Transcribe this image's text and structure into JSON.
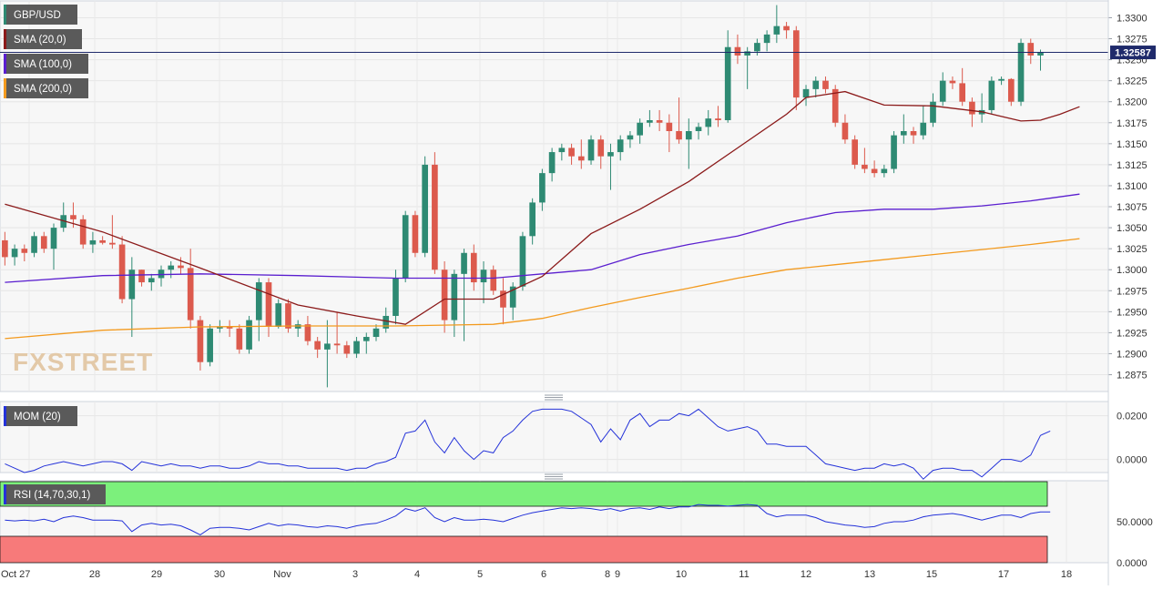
{
  "symbol": "GBP/USD",
  "indicators": {
    "sma20": "SMA (20,0)",
    "sma100": "SMA (100,0)",
    "sma200": "SMA (200,0)",
    "mom": "MOM (20)",
    "rsi": "RSI (14,70,30,1)"
  },
  "watermark": "FXSTREET",
  "last_price_label": "1.32587",
  "colors": {
    "up": "#2e8a73",
    "down": "#dc5a4d",
    "sma20": "#8b1a1a",
    "sma100": "#5a1ecf",
    "sma200": "#f39a1e",
    "mom": "#2432d9",
    "rsi": "#2432d9",
    "rsi_overbought": "#7cf07c",
    "rsi_oversold": "#f77a7a",
    "price_line": "#1f2a6b"
  },
  "chart_data": [
    {
      "type": "candlestick",
      "title": "GBP/USD",
      "x_tick_labels": [
        "Oct 27",
        "28",
        "29",
        "30",
        "Nov",
        "3",
        "4",
        "5",
        "6",
        "8",
        "9",
        "10",
        "11",
        "12",
        "13",
        "15",
        "17",
        "18"
      ],
      "ylim": [
        1.2855,
        1.332
      ],
      "y_ticks": [
        "1.3300",
        "1.3275",
        "1.3250",
        "1.3225",
        "1.3200",
        "1.3175",
        "1.3150",
        "1.3125",
        "1.3100",
        "1.3075",
        "1.3050",
        "1.3025",
        "1.3000",
        "1.2975",
        "1.2950",
        "1.2925",
        "1.2900",
        "1.2875"
      ],
      "last_price": 1.32587,
      "ohlc": [
        [
          1.3035,
          1.3045,
          1.3005,
          1.3015
        ],
        [
          1.3015,
          1.303,
          1.3005,
          1.3025
        ],
        [
          1.3025,
          1.303,
          1.301,
          1.302
        ],
        [
          1.302,
          1.3045,
          1.3015,
          1.304
        ],
        [
          1.304,
          1.3045,
          1.302,
          1.3025
        ],
        [
          1.3025,
          1.3055,
          1.3,
          1.305
        ],
        [
          1.305,
          1.308,
          1.3045,
          1.3065
        ],
        [
          1.3065,
          1.308,
          1.305,
          1.306
        ],
        [
          1.306,
          1.3065,
          1.3025,
          1.303
        ],
        [
          1.303,
          1.3045,
          1.302,
          1.3035
        ],
        [
          1.3035,
          1.304,
          1.303,
          1.3032
        ],
        [
          1.3032,
          1.3065,
          1.3025,
          1.303
        ],
        [
          1.303,
          1.304,
          1.296,
          1.2965
        ],
        [
          1.2965,
          1.3015,
          1.292,
          1.3
        ],
        [
          1.3,
          1.3,
          1.298,
          1.2985
        ],
        [
          1.2985,
          1.2995,
          1.2975,
          1.299
        ],
        [
          1.299,
          1.3005,
          1.298,
          1.3
        ],
        [
          1.3,
          1.301,
          1.299,
          1.3005
        ],
        [
          1.3005,
          1.3015,
          1.2995,
          1.3002
        ],
        [
          1.3002,
          1.3025,
          1.293,
          1.294
        ],
        [
          1.294,
          1.2945,
          1.288,
          1.289
        ],
        [
          1.289,
          1.2935,
          1.2885,
          1.293
        ],
        [
          1.293,
          1.294,
          1.2925,
          1.2932
        ],
        [
          1.2932,
          1.294,
          1.292,
          1.293
        ],
        [
          1.293,
          1.2935,
          1.29,
          1.2905
        ],
        [
          1.2905,
          1.2945,
          1.29,
          1.294
        ],
        [
          1.294,
          1.299,
          1.2915,
          1.2985
        ],
        [
          1.2985,
          1.299,
          1.292,
          1.2932
        ],
        [
          1.2932,
          1.2965,
          1.293,
          1.296
        ],
        [
          1.296,
          1.2965,
          1.2925,
          1.293
        ],
        [
          1.293,
          1.294,
          1.292,
          1.2935
        ],
        [
          1.2935,
          1.2945,
          1.291,
          1.2915
        ],
        [
          1.2915,
          1.292,
          1.2895,
          1.2905
        ],
        [
          1.2905,
          1.294,
          1.286,
          1.2912
        ],
        [
          1.2912,
          1.295,
          1.29,
          1.291
        ],
        [
          1.291,
          1.2915,
          1.2895,
          1.29
        ],
        [
          1.29,
          1.292,
          1.2895,
          1.2915
        ],
        [
          1.2915,
          1.2925,
          1.29,
          1.292
        ],
        [
          1.292,
          1.2935,
          1.2915,
          1.293
        ],
        [
          1.293,
          1.2955,
          1.2925,
          1.2945
        ],
        [
          1.2945,
          1.3,
          1.2935,
          1.299
        ],
        [
          1.299,
          1.307,
          1.2985,
          1.3065
        ],
        [
          1.3065,
          1.307,
          1.3015,
          1.302
        ],
        [
          1.302,
          1.3135,
          1.3015,
          1.3125
        ],
        [
          1.3125,
          1.314,
          1.2995,
          1.3
        ],
        [
          1.3,
          1.301,
          1.2925,
          1.294
        ],
        [
          1.294,
          1.3,
          1.292,
          1.2995
        ],
        [
          1.2995,
          1.3025,
          1.2915,
          1.302
        ],
        [
          1.302,
          1.303,
          1.2975,
          1.2985
        ],
        [
          1.2985,
          1.301,
          1.296,
          1.3
        ],
        [
          1.3,
          1.3005,
          1.297,
          1.2975
        ],
        [
          1.2975,
          1.299,
          1.2935,
          1.2955
        ],
        [
          1.2955,
          1.2985,
          1.294,
          1.298
        ],
        [
          1.298,
          1.3045,
          1.2975,
          1.304
        ],
        [
          1.304,
          1.3085,
          1.303,
          1.308
        ],
        [
          1.308,
          1.312,
          1.307,
          1.3115
        ],
        [
          1.3115,
          1.3145,
          1.3105,
          1.314
        ],
        [
          1.314,
          1.315,
          1.313,
          1.3145
        ],
        [
          1.3145,
          1.315,
          1.3125,
          1.3135
        ],
        [
          1.3135,
          1.3155,
          1.312,
          1.313
        ],
        [
          1.313,
          1.316,
          1.3125,
          1.3155
        ],
        [
          1.3155,
          1.316,
          1.312,
          1.3135
        ],
        [
          1.3135,
          1.315,
          1.3095,
          1.314
        ],
        [
          1.314,
          1.316,
          1.313,
          1.3155
        ],
        [
          1.3155,
          1.3165,
          1.3145,
          1.316
        ],
        [
          1.316,
          1.318,
          1.315,
          1.3175
        ],
        [
          1.3175,
          1.319,
          1.317,
          1.3178
        ],
        [
          1.3178,
          1.319,
          1.3165,
          1.3175
        ],
        [
          1.3175,
          1.3185,
          1.314,
          1.3165
        ],
        [
          1.3165,
          1.3205,
          1.315,
          1.3155
        ],
        [
          1.3155,
          1.318,
          1.312,
          1.3165
        ],
        [
          1.3165,
          1.3175,
          1.3155,
          1.317
        ],
        [
          1.317,
          1.319,
          1.316,
          1.318
        ],
        [
          1.318,
          1.3195,
          1.317,
          1.3178
        ],
        [
          1.3178,
          1.3285,
          1.3175,
          1.3265
        ],
        [
          1.3265,
          1.328,
          1.3245,
          1.3255
        ],
        [
          1.3255,
          1.3265,
          1.3215,
          1.326
        ],
        [
          1.326,
          1.3275,
          1.3255,
          1.327
        ],
        [
          1.327,
          1.3285,
          1.326,
          1.328
        ],
        [
          1.328,
          1.3315,
          1.327,
          1.329
        ],
        [
          1.329,
          1.3295,
          1.3275,
          1.3285
        ],
        [
          1.3285,
          1.329,
          1.319,
          1.3205
        ],
        [
          1.3205,
          1.322,
          1.3195,
          1.3215
        ],
        [
          1.3215,
          1.323,
          1.3205,
          1.3225
        ],
        [
          1.3225,
          1.323,
          1.321,
          1.3215
        ],
        [
          1.3215,
          1.322,
          1.317,
          1.3175
        ],
        [
          1.3175,
          1.3185,
          1.315,
          1.3155
        ],
        [
          1.3155,
          1.316,
          1.312,
          1.3125
        ],
        [
          1.3125,
          1.3145,
          1.3115,
          1.312
        ],
        [
          1.312,
          1.313,
          1.311,
          1.3115
        ],
        [
          1.3115,
          1.3125,
          1.311,
          1.312
        ],
        [
          1.312,
          1.3165,
          1.3115,
          1.316
        ],
        [
          1.316,
          1.3185,
          1.315,
          1.3165
        ],
        [
          1.3165,
          1.317,
          1.315,
          1.316
        ],
        [
          1.316,
          1.3195,
          1.3155,
          1.3175
        ],
        [
          1.3175,
          1.321,
          1.317,
          1.32
        ],
        [
          1.32,
          1.3235,
          1.3195,
          1.3225
        ],
        [
          1.3225,
          1.323,
          1.3215,
          1.3222
        ],
        [
          1.3222,
          1.324,
          1.3195,
          1.32
        ],
        [
          1.32,
          1.3205,
          1.317,
          1.3185
        ],
        [
          1.3185,
          1.321,
          1.3175,
          1.319
        ],
        [
          1.319,
          1.323,
          1.3185,
          1.3225
        ],
        [
          1.3225,
          1.323,
          1.322,
          1.3227
        ],
        [
          1.3227,
          1.3228,
          1.3195,
          1.32
        ],
        [
          1.32,
          1.3275,
          1.3195,
          1.327
        ],
        [
          1.327,
          1.3275,
          1.3245,
          1.3255
        ],
        [
          1.3255,
          1.3262,
          1.3237,
          1.3259
        ]
      ],
      "sma20": [
        [
          0,
          1.3078
        ],
        [
          10,
          1.3045
        ],
        [
          20,
          1.3002
        ],
        [
          30,
          1.2958
        ],
        [
          36,
          1.2945
        ],
        [
          41,
          1.2935
        ],
        [
          45,
          1.2965
        ],
        [
          50,
          1.2965
        ],
        [
          55,
          1.2992
        ],
        [
          60,
          1.3043
        ],
        [
          65,
          1.3072
        ],
        [
          70,
          1.3105
        ],
        [
          75,
          1.3145
        ],
        [
          80,
          1.3185
        ],
        [
          82,
          1.3205
        ],
        [
          86,
          1.3212
        ],
        [
          90,
          1.3196
        ],
        [
          95,
          1.3195
        ],
        [
          100,
          1.3188
        ],
        [
          104,
          1.3177
        ],
        [
          106,
          1.3178
        ],
        [
          108,
          1.3185
        ],
        [
          110,
          1.3194
        ]
      ],
      "sma100": [
        [
          0,
          1.2985
        ],
        [
          10,
          1.2993
        ],
        [
          20,
          1.2995
        ],
        [
          30,
          1.2993
        ],
        [
          40,
          1.299
        ],
        [
          50,
          1.299
        ],
        [
          55,
          1.2995
        ],
        [
          60,
          1.3
        ],
        [
          65,
          1.3018
        ],
        [
          70,
          1.303
        ],
        [
          75,
          1.304
        ],
        [
          80,
          1.3056
        ],
        [
          85,
          1.3068
        ],
        [
          90,
          1.3072
        ],
        [
          95,
          1.3072
        ],
        [
          100,
          1.3076
        ],
        [
          105,
          1.3082
        ],
        [
          110,
          1.309
        ]
      ],
      "sma200": [
        [
          0,
          1.2918
        ],
        [
          10,
          1.2928
        ],
        [
          20,
          1.2932
        ],
        [
          30,
          1.2933
        ],
        [
          40,
          1.2933
        ],
        [
          50,
          1.2935
        ],
        [
          55,
          1.2942
        ],
        [
          60,
          1.2955
        ],
        [
          65,
          1.2967
        ],
        [
          70,
          1.2978
        ],
        [
          75,
          1.299
        ],
        [
          80,
          1.3
        ],
        [
          85,
          1.3006
        ],
        [
          90,
          1.3012
        ],
        [
          95,
          1.3018
        ],
        [
          100,
          1.3024
        ],
        [
          105,
          1.303
        ],
        [
          110,
          1.3037
        ]
      ]
    },
    {
      "type": "line",
      "title": "MOM (20)",
      "ylim": [
        -0.006,
        0.0265
      ],
      "y_ticks": [
        "0.0200",
        "0.0000"
      ],
      "values": [
        -0.002,
        -0.004,
        -0.006,
        -0.005,
        -0.003,
        -0.002,
        -0.001,
        -0.002,
        -0.003,
        -0.002,
        -0.001,
        -0.001,
        -0.002,
        -0.005,
        -0.001,
        -0.002,
        -0.003,
        -0.002,
        -0.003,
        -0.003,
        -0.004,
        -0.003,
        -0.003,
        -0.004,
        -0.004,
        -0.003,
        -0.001,
        -0.002,
        -0.002,
        -0.003,
        -0.003,
        -0.004,
        -0.004,
        -0.004,
        -0.004,
        -0.005,
        -0.004,
        -0.004,
        -0.002,
        -0.001,
        0.001,
        0.012,
        0.013,
        0.018,
        0.008,
        0.003,
        0.01,
        0.004,
        0.0,
        0.004,
        0.003,
        0.01,
        0.013,
        0.018,
        0.022,
        0.023,
        0.023,
        0.023,
        0.022,
        0.019,
        0.016,
        0.008,
        0.014,
        0.009,
        0.018,
        0.021,
        0.015,
        0.018,
        0.018,
        0.021,
        0.02,
        0.023,
        0.019,
        0.015,
        0.013,
        0.014,
        0.015,
        0.013,
        0.007,
        0.007,
        0.006,
        0.006,
        0.006,
        0.002,
        -0.002,
        -0.003,
        -0.004,
        -0.005,
        -0.004,
        -0.004,
        -0.002,
        -0.003,
        -0.002,
        -0.004,
        -0.009,
        -0.005,
        -0.004,
        -0.004,
        -0.005,
        -0.005,
        -0.008,
        -0.004,
        0.0,
        0.0,
        -0.001,
        0.002,
        0.011,
        0.013
      ]
    },
    {
      "type": "line",
      "title": "RSI (14,70,30,1)",
      "ylim": [
        0,
        100
      ],
      "y_ticks": [
        "50.0000",
        "0.0000"
      ],
      "overbought": 70,
      "oversold": 30,
      "values": [
        52,
        51,
        52,
        51,
        53,
        50,
        55,
        57,
        55,
        52,
        52,
        52,
        51,
        38,
        46,
        48,
        46,
        47,
        45,
        40,
        34,
        42,
        43,
        43,
        42,
        40,
        44,
        48,
        45,
        47,
        46,
        44,
        43,
        45,
        44,
        42,
        45,
        47,
        48,
        52,
        57,
        66,
        63,
        67,
        55,
        50,
        55,
        52,
        52,
        53,
        52,
        50,
        54,
        58,
        61,
        63,
        65,
        67,
        66,
        67,
        66,
        64,
        66,
        63,
        66,
        67,
        65,
        68,
        66,
        68,
        68,
        71,
        70,
        70,
        69,
        70,
        71,
        70,
        60,
        56,
        58,
        58,
        58,
        55,
        50,
        48,
        46,
        45,
        43,
        44,
        48,
        50,
        50,
        52,
        56,
        58,
        59,
        60,
        58,
        55,
        52,
        55,
        58,
        58,
        55,
        60,
        62,
        62
      ]
    }
  ]
}
